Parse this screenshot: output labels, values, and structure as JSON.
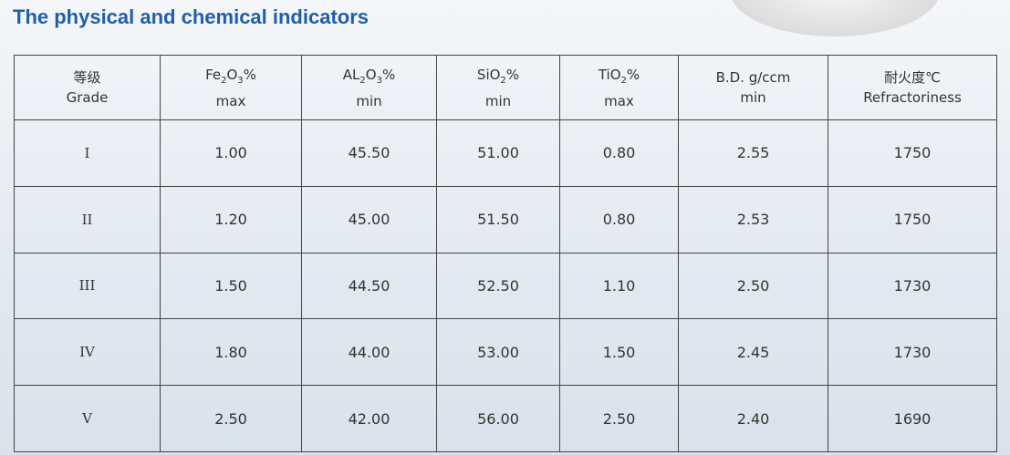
{
  "title": "The physical and chemical indicators",
  "table": {
    "header": [
      {
        "line1": [
          "等级"
        ],
        "line2": "Grade"
      },
      {
        "line1": [
          "Fe",
          "2",
          "O",
          "3",
          "%"
        ],
        "line2": "max"
      },
      {
        "line1": [
          "AL",
          "2",
          "O",
          "3",
          "%"
        ],
        "line2": "min"
      },
      {
        "line1": [
          "SiO",
          "2",
          "%"
        ],
        "line2": "min"
      },
      {
        "line1": [
          "TiO",
          "2",
          "%"
        ],
        "line2": "max"
      },
      {
        "line1": [
          "B.D. g/ccm"
        ],
        "line2": "min"
      },
      {
        "line1": [
          "耐火度℃"
        ],
        "line2": "Refractoriness"
      }
    ],
    "rows": [
      [
        "I",
        "1.00",
        "45.50",
        "51.00",
        "0.80",
        "2.55",
        "1750"
      ],
      [
        "II",
        "1.20",
        "45.00",
        "51.50",
        "0.80",
        "2.53",
        "1750"
      ],
      [
        "III",
        "1.50",
        "44.50",
        "52.50",
        "1.10",
        "2.50",
        "1730"
      ],
      [
        "IV",
        "1.80",
        "44.00",
        "53.00",
        "1.50",
        "2.45",
        "1730"
      ],
      [
        "V",
        "2.50",
        "42.00",
        "56.00",
        "2.50",
        "2.40",
        "1690"
      ]
    ]
  }
}
